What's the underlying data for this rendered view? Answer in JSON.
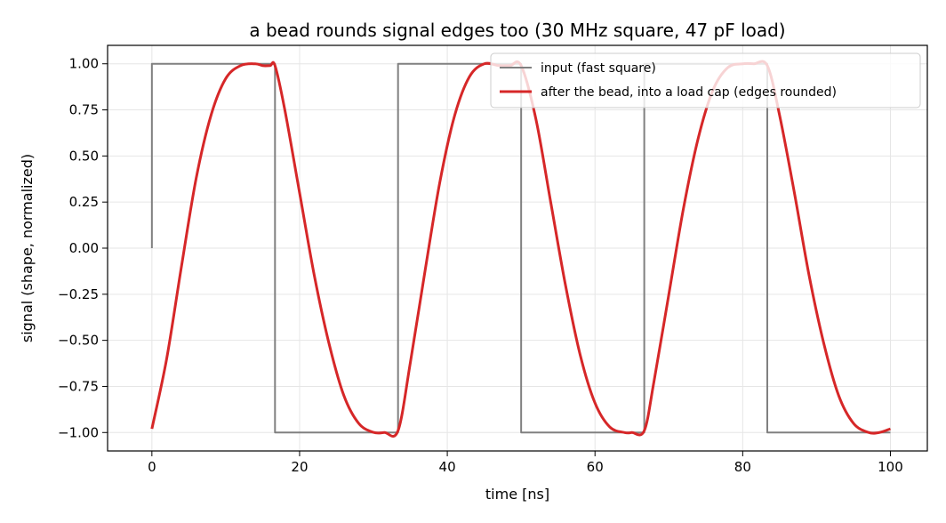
{
  "chart_data": {
    "type": "line",
    "title": "a bead rounds signal edges too (30 MHz square, 47 pF load)",
    "xlabel": "time [ns]",
    "ylabel": "signal (shape, normalized)",
    "xlim": [
      -6,
      105
    ],
    "ylim": [
      -1.1,
      1.1
    ],
    "xticks": [
      0,
      20,
      40,
      60,
      80,
      100
    ],
    "xtick_labels": [
      "0",
      "20",
      "40",
      "60",
      "80",
      "100"
    ],
    "yticks": [
      1.0,
      0.75,
      0.5,
      0.25,
      0.0,
      -0.25,
      -0.5,
      -0.75,
      -1.0
    ],
    "ytick_labels": [
      "1.00",
      "0.75",
      "0.50",
      "0.25",
      "0.00",
      "−0.25",
      "−0.50",
      "−0.75",
      "−1.00"
    ],
    "grid": true,
    "legend_position": "top-right",
    "series": [
      {
        "name": "input (fast square)",
        "color": "#808080",
        "style": "step",
        "x": [
          0,
          0,
          16.67,
          16.67,
          33.33,
          33.33,
          50.0,
          50.0,
          66.67,
          66.67,
          83.33,
          83.33,
          100
        ],
        "y": [
          0,
          1,
          1,
          -1,
          -1,
          1,
          1,
          -1,
          -1,
          1,
          1,
          -1,
          -1
        ]
      },
      {
        "name": "after the bead, into a load cap (edges rounded)",
        "color": "#d62728",
        "style": "line",
        "x": [
          0,
          2,
          4,
          6,
          8,
          10,
          12,
          14,
          15,
          16,
          16.67,
          18,
          20,
          22,
          24,
          26,
          28,
          30,
          31.5,
          33.33,
          35,
          37,
          39,
          41,
          43,
          45,
          47,
          48.5,
          50.0,
          52,
          54,
          56,
          58,
          60,
          62,
          64,
          65,
          66.67,
          68,
          70,
          72,
          74,
          76,
          78,
          80,
          81.5,
          83.33,
          85,
          87,
          89,
          91,
          93,
          95,
          97,
          98.5,
          100
        ],
        "y": [
          -0.98,
          -0.6,
          -0.1,
          0.38,
          0.72,
          0.92,
          0.99,
          1.0,
          0.99,
          0.99,
          0.99,
          0.75,
          0.3,
          -0.15,
          -0.52,
          -0.8,
          -0.95,
          -0.999,
          -1.0,
          -0.99,
          -0.62,
          -0.12,
          0.36,
          0.72,
          0.93,
          1.0,
          0.99,
          0.99,
          0.99,
          0.7,
          0.25,
          -0.2,
          -0.58,
          -0.84,
          -0.97,
          -1.0,
          -1.0,
          -0.99,
          -0.72,
          -0.25,
          0.22,
          0.6,
          0.86,
          0.98,
          1.0,
          1.0,
          0.99,
          0.72,
          0.3,
          -0.15,
          -0.52,
          -0.8,
          -0.95,
          -0.999,
          -1.0,
          -0.98
        ]
      }
    ]
  }
}
